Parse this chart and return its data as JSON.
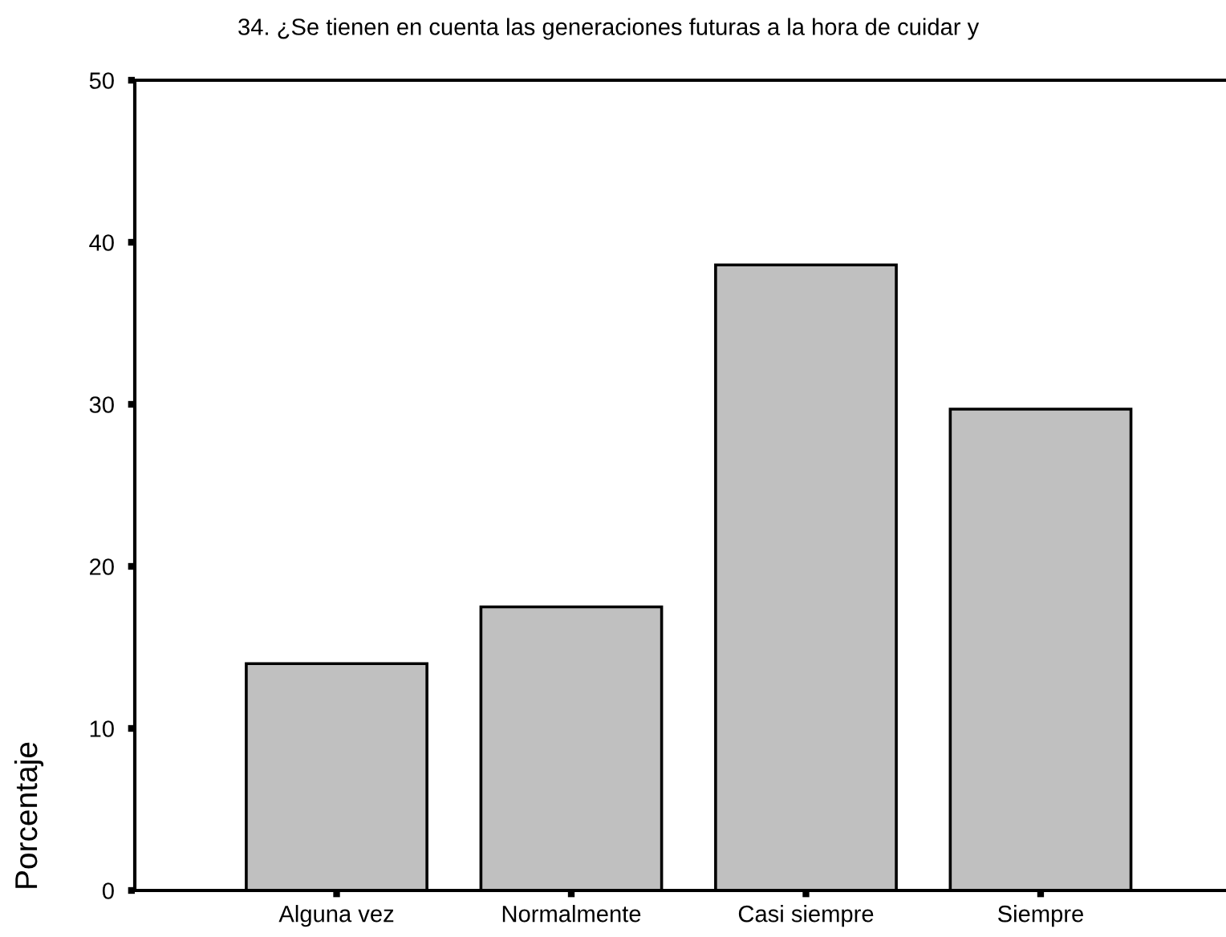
{
  "chart_data": {
    "type": "bar",
    "title": "34. ¿Se tienen en cuenta las generaciones futuras a la hora de cuidar y",
    "ylabel": "Porcentaje",
    "categories": [
      "Alguna vez",
      "Normalmente",
      "Casi siempre",
      "Siempre"
    ],
    "values": [
      14.0,
      17.5,
      38.6,
      29.7
    ],
    "color": "#c0c0c0",
    "ylim": [
      0,
      50
    ],
    "yticks": [
      0,
      10,
      20,
      30,
      40,
      50
    ],
    "grid": false,
    "legend": false
  }
}
